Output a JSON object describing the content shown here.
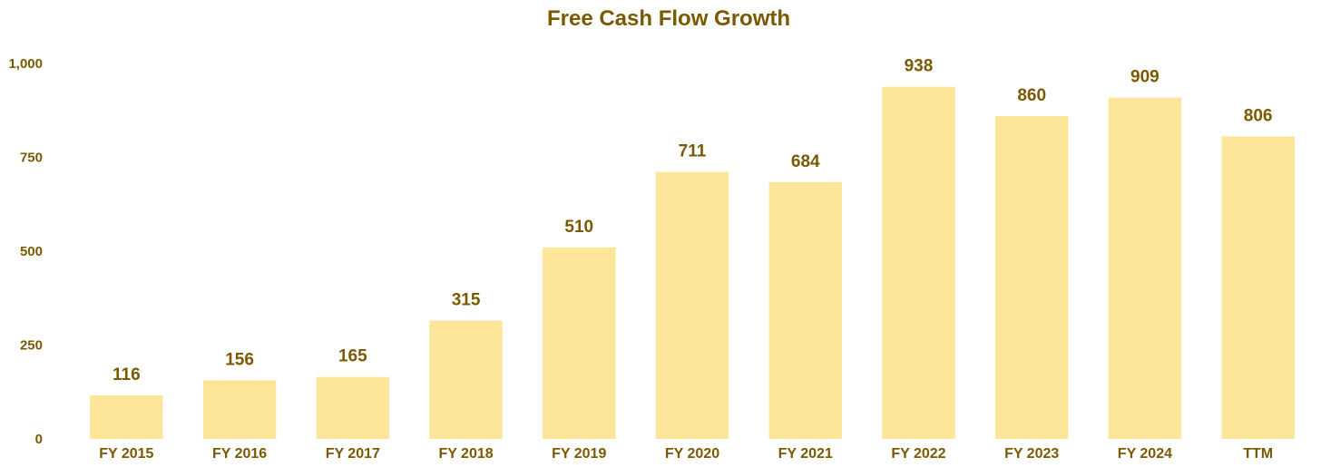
{
  "colors": {
    "bar": "#fde59a",
    "text": "#7a5a00"
  },
  "chart_data": {
    "type": "bar",
    "title": "Free Cash Flow Growth",
    "xlabel": "",
    "ylabel": "",
    "categories": [
      "FY 2015",
      "FY 2016",
      "FY 2017",
      "FY 2018",
      "FY 2019",
      "FY 2020",
      "FY 2021",
      "FY 2022",
      "FY 2023",
      "FY 2024",
      "TTM"
    ],
    "values": [
      116,
      156,
      165,
      315,
      510,
      711,
      684,
      938,
      860,
      909,
      806
    ],
    "ylim": [
      0,
      1000
    ],
    "yticks": [
      0,
      250,
      500,
      750,
      1000
    ],
    "ytick_labels": [
      "0",
      "250",
      "500",
      "750",
      "1,000"
    ],
    "data_labels": [
      "116",
      "156",
      "165",
      "315",
      "510",
      "711",
      "684",
      "938",
      "860",
      "909",
      "806"
    ],
    "grid": false,
    "legend": "none"
  }
}
